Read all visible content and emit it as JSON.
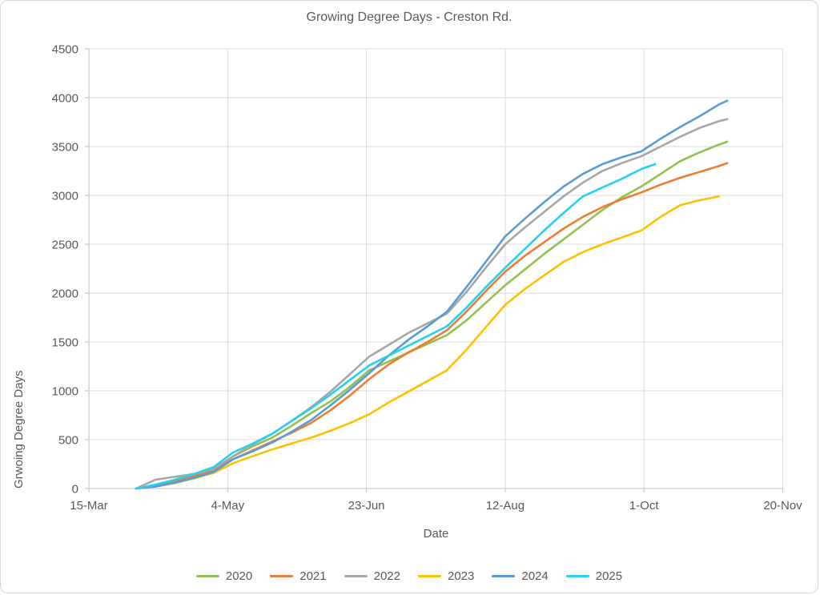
{
  "style": {
    "background": "#FFFFFF",
    "border_color": "#D8D8D8",
    "text_color": "#595959",
    "grid_color": "#D9D9D9",
    "axis_color": "#BFBFBF"
  },
  "chart_data": {
    "type": "line",
    "title": "Growing Degree Days - Creston Rd.",
    "xlabel": "Date",
    "ylabel": "Grwoing Degree Days",
    "grid": true,
    "legend_position": "bottom",
    "x_axis": {
      "tick_labels": [
        "15-Mar",
        "4-May",
        "23-Jun",
        "12-Aug",
        "1-Oct",
        "20-Nov"
      ],
      "tick_days": [
        0,
        50,
        100,
        150,
        200,
        250
      ],
      "range_days": [
        0,
        250
      ],
      "note": "x stored as days since 15-Mar"
    },
    "y_axis": {
      "ticks": [
        0,
        500,
        1000,
        1500,
        2000,
        2500,
        3000,
        3500,
        4000,
        4500
      ],
      "range": [
        0,
        4500
      ]
    },
    "series": [
      {
        "name": "2020",
        "color": "#90C24F",
        "x": [
          17,
          24,
          31,
          38,
          45,
          52,
          59,
          66,
          73,
          80,
          87,
          94,
          101,
          108,
          115,
          122,
          129,
          136,
          143,
          150,
          157,
          164,
          171,
          178,
          185,
          192,
          199,
          206,
          213,
          220,
          227,
          230
        ],
        "y": [
          0,
          30,
          75,
          130,
          190,
          330,
          430,
          520,
          640,
          770,
          890,
          1040,
          1210,
          1300,
          1390,
          1480,
          1570,
          1720,
          1900,
          2080,
          2240,
          2400,
          2550,
          2700,
          2850,
          2980,
          3090,
          3220,
          3350,
          3440,
          3520,
          3550
        ]
      },
      {
        "name": "2021",
        "color": "#ED7D31",
        "x": [
          17,
          24,
          31,
          38,
          45,
          52,
          59,
          66,
          73,
          80,
          87,
          94,
          101,
          108,
          115,
          122,
          129,
          136,
          143,
          150,
          157,
          164,
          171,
          178,
          185,
          192,
          199,
          206,
          213,
          220,
          227,
          230
        ],
        "y": [
          0,
          25,
          70,
          125,
          185,
          300,
          390,
          480,
          570,
          670,
          800,
          950,
          1120,
          1270,
          1390,
          1500,
          1620,
          1810,
          2020,
          2220,
          2380,
          2520,
          2660,
          2780,
          2880,
          2960,
          3030,
          3110,
          3180,
          3240,
          3300,
          3330
        ]
      },
      {
        "name": "2022",
        "color": "#A6A6A6",
        "x": [
          17,
          24,
          31,
          38,
          45,
          52,
          59,
          66,
          73,
          80,
          87,
          94,
          101,
          108,
          115,
          122,
          129,
          136,
          143,
          150,
          157,
          164,
          171,
          178,
          185,
          192,
          199,
          206,
          213,
          220,
          227,
          230
        ],
        "y": [
          0,
          90,
          120,
          150,
          200,
          330,
          450,
          560,
          690,
          830,
          990,
          1170,
          1350,
          1470,
          1590,
          1690,
          1790,
          2010,
          2260,
          2500,
          2670,
          2830,
          2990,
          3130,
          3250,
          3330,
          3400,
          3500,
          3600,
          3690,
          3760,
          3780
        ]
      },
      {
        "name": "2023",
        "color": "#FFC000",
        "x": [
          17,
          24,
          31,
          38,
          45,
          52,
          59,
          66,
          73,
          80,
          87,
          94,
          101,
          108,
          115,
          122,
          129,
          136,
          143,
          150,
          157,
          164,
          171,
          178,
          185,
          192,
          199,
          206,
          213,
          220,
          227
        ],
        "y": [
          0,
          20,
          55,
          105,
          160,
          260,
          330,
          400,
          460,
          520,
          590,
          670,
          760,
          880,
          990,
          1100,
          1210,
          1420,
          1650,
          1880,
          2040,
          2180,
          2320,
          2420,
          2500,
          2570,
          2640,
          2780,
          2900,
          2950,
          2990
        ]
      },
      {
        "name": "2024",
        "color": "#5B9BD5",
        "x": [
          17,
          24,
          31,
          38,
          45,
          52,
          59,
          66,
          73,
          80,
          87,
          94,
          101,
          108,
          115,
          122,
          129,
          136,
          143,
          150,
          157,
          164,
          171,
          178,
          185,
          192,
          199,
          206,
          213,
          220,
          227,
          230
        ],
        "y": [
          0,
          20,
          60,
          110,
          170,
          300,
          380,
          470,
          580,
          700,
          850,
          1010,
          1180,
          1360,
          1520,
          1660,
          1810,
          2060,
          2320,
          2580,
          2760,
          2930,
          3090,
          3220,
          3320,
          3390,
          3450,
          3580,
          3700,
          3810,
          3930,
          3970
        ]
      },
      {
        "name": "2025",
        "color": "#26D0F1",
        "x": [
          17,
          24,
          31,
          38,
          45,
          52,
          59,
          66,
          73,
          80,
          87,
          94,
          101,
          108,
          115,
          122,
          129,
          136,
          143,
          150,
          157,
          164,
          171,
          178,
          185,
          192,
          199,
          204
        ],
        "y": [
          0,
          40,
          90,
          150,
          220,
          370,
          460,
          560,
          690,
          820,
          960,
          1110,
          1260,
          1360,
          1460,
          1560,
          1660,
          1850,
          2060,
          2260,
          2450,
          2640,
          2820,
          2990,
          3080,
          3170,
          3270,
          3320
        ]
      }
    ]
  }
}
